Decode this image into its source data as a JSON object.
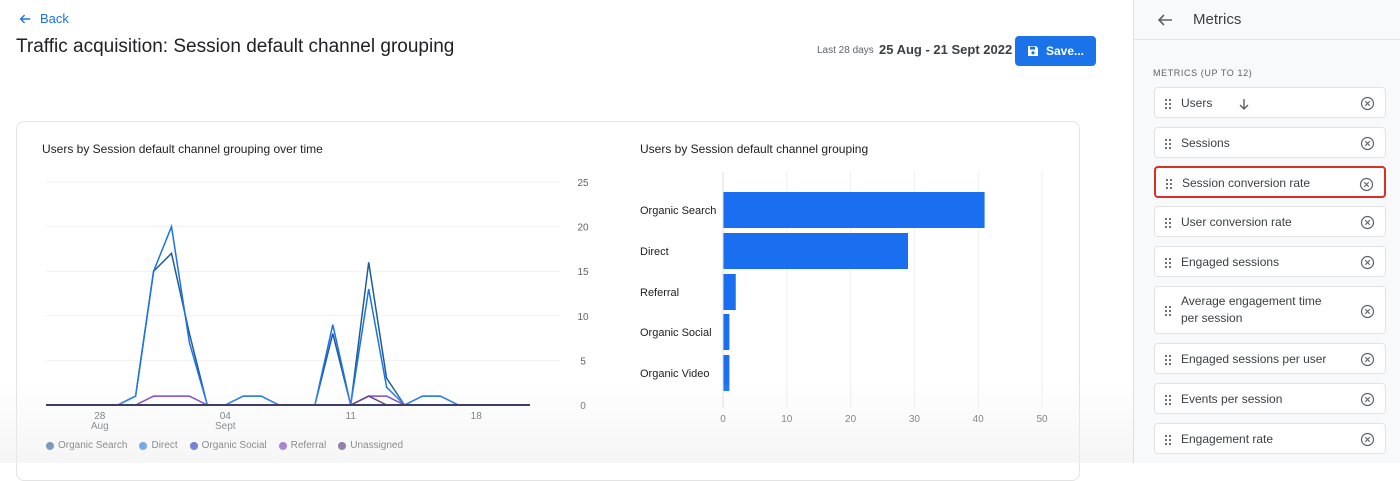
{
  "header": {
    "back_label": "Back",
    "title": "Traffic acquisition: Session default channel grouping",
    "date_prefix": "Last 28 days",
    "date_range": "25 Aug - 21 Sept 2022",
    "save_label": "Save..."
  },
  "line_chart": {
    "title": "Users by Session default channel grouping over time",
    "y_ticks": [
      "25",
      "20",
      "15",
      "10",
      "5",
      "0"
    ],
    "x_ticks": [
      {
        "day": "28",
        "month": "Aug"
      },
      {
        "day": "04",
        "month": "Sept"
      },
      {
        "day": "11",
        "month": ""
      },
      {
        "day": "18",
        "month": ""
      }
    ],
    "legend": [
      {
        "label": "Organic Search",
        "color": "#1f5c96"
      },
      {
        "label": "Direct",
        "color": "#1a73e8"
      },
      {
        "label": "Organic Social",
        "color": "#1b2cc1"
      },
      {
        "label": "Referral",
        "color": "#6f35c4"
      },
      {
        "label": "Unassigned",
        "color": "#4a2a7a"
      }
    ]
  },
  "bar_chart": {
    "title": "Users by Session default channel grouping",
    "x_ticks": [
      "0",
      "10",
      "20",
      "30",
      "40",
      "50"
    ],
    "bar_color": "#1a6ff0"
  },
  "chart_data": [
    {
      "type": "line",
      "title": "Users by Session default channel grouping over time",
      "x": [
        "25 Aug",
        "26 Aug",
        "27 Aug",
        "28 Aug",
        "29 Aug",
        "30 Aug",
        "31 Aug",
        "01 Sept",
        "02 Sept",
        "03 Sept",
        "04 Sept",
        "05 Sept",
        "06 Sept",
        "07 Sept",
        "08 Sept",
        "09 Sept",
        "10 Sept",
        "11 Sept",
        "12 Sept",
        "13 Sept",
        "14 Sept",
        "15 Sept",
        "16 Sept",
        "17 Sept",
        "18 Sept",
        "19 Sept",
        "20 Sept",
        "21 Sept"
      ],
      "ylim": [
        0,
        25
      ],
      "series": [
        {
          "name": "Organic Search",
          "values": [
            0,
            0,
            0,
            0,
            0,
            1,
            15,
            17,
            8,
            0,
            0,
            1,
            1,
            0,
            0,
            0,
            8,
            0,
            16,
            3,
            0,
            1,
            1,
            0,
            0,
            0,
            0,
            0
          ]
        },
        {
          "name": "Direct",
          "values": [
            0,
            0,
            0,
            0,
            0,
            1,
            15,
            20,
            7,
            0,
            0,
            1,
            1,
            0,
            0,
            0,
            9,
            0,
            13,
            2,
            0,
            1,
            1,
            0,
            0,
            0,
            0,
            0
          ]
        },
        {
          "name": "Organic Social",
          "values": [
            0,
            0,
            0,
            0,
            0,
            0,
            0,
            0,
            0,
            0,
            0,
            0,
            0,
            0,
            0,
            0,
            0,
            0,
            0,
            0,
            0,
            0,
            0,
            0,
            0,
            0,
            0,
            0
          ]
        },
        {
          "name": "Referral",
          "values": [
            0,
            0,
            0,
            0,
            0,
            0,
            1,
            1,
            1,
            0,
            0,
            0,
            0,
            0,
            0,
            0,
            0,
            0,
            1,
            1,
            0,
            0,
            0,
            0,
            0,
            0,
            0,
            0
          ]
        },
        {
          "name": "Unassigned",
          "values": [
            0,
            0,
            0,
            0,
            0,
            0,
            0,
            0,
            0,
            0,
            0,
            0,
            0,
            0,
            0,
            0,
            0,
            0,
            1,
            0,
            0,
            0,
            0,
            0,
            0,
            0,
            0,
            0
          ]
        }
      ],
      "legend": "bottom"
    },
    {
      "type": "bar",
      "title": "Users by Session default channel grouping",
      "categories": [
        "Organic Search",
        "Direct",
        "Referral",
        "Organic Social",
        "Organic Video"
      ],
      "values": [
        41,
        29,
        2,
        1,
        1
      ],
      "xlim": [
        0,
        50
      ],
      "orientation": "horizontal"
    }
  ],
  "panel": {
    "title": "Metrics",
    "section_label": "METRICS (UP TO 12)",
    "metrics": [
      {
        "label": "Users",
        "sorted": true
      },
      {
        "label": "Sessions"
      },
      {
        "label": "Session conversion rate",
        "highlighted": true
      },
      {
        "label": "User conversion rate"
      },
      {
        "label": "Engaged sessions"
      },
      {
        "label": "Average engagement time per session"
      },
      {
        "label": "Engaged sessions per user"
      },
      {
        "label": "Events per session"
      },
      {
        "label": "Engagement rate"
      }
    ]
  }
}
